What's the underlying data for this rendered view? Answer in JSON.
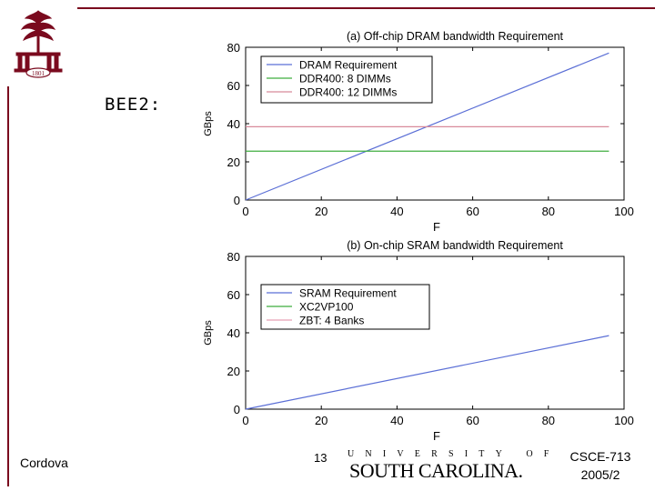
{
  "slide": {
    "title": "BEE2:",
    "footer_left": "Cordova",
    "page_number": "13",
    "footer_right_line1": "CSCE-713",
    "footer_right_line2": "2005/2",
    "university_line1": "UNIVERSITY OF",
    "university_line2": "SOUTH CAROLINA.",
    "logo_year": "1801"
  },
  "colors": {
    "accent": "#7a0a1e",
    "dram_requirement": "#5b6fd6",
    "ddr400_8dimms": "#3fae3f",
    "ddr400_12dimms": "#d88a9a",
    "sram_requirement": "#5b6fd6",
    "xc2vp100": "#3fae3f",
    "zbt_4banks": "#e8a0b4"
  },
  "chart_data": [
    {
      "type": "line",
      "title": "(a) Off-chip DRAM bandwidth Requirement",
      "xlabel": "F",
      "ylabel": "GBps",
      "xlim": [
        0,
        100
      ],
      "ylim": [
        0,
        80
      ],
      "xticks": [
        0,
        20,
        40,
        60,
        80,
        100
      ],
      "yticks": [
        0,
        20,
        40,
        60,
        80
      ],
      "legend_position": "top-left",
      "series": [
        {
          "name": "DRAM Requirement",
          "x": [
            0,
            96
          ],
          "y": [
            0,
            77
          ],
          "color_key": "dram_requirement"
        },
        {
          "name": "DDR400: 8 DIMMs",
          "x": [
            0,
            96
          ],
          "y": [
            25.6,
            25.6
          ],
          "color_key": "ddr400_8dimms"
        },
        {
          "name": "DDR400: 12 DIMMs",
          "x": [
            0,
            96
          ],
          "y": [
            38.4,
            38.4
          ],
          "color_key": "ddr400_12dimms"
        }
      ]
    },
    {
      "type": "line",
      "title": "(b) On-chip SRAM bandwidth Requirement",
      "xlabel": "F",
      "ylabel": "GBps",
      "xlim": [
        0,
        100
      ],
      "ylim": [
        0,
        80
      ],
      "xticks": [
        0,
        20,
        40,
        60,
        80,
        100
      ],
      "yticks": [
        0,
        20,
        40,
        60,
        80
      ],
      "legend_position": "top-left",
      "series": [
        {
          "name": "SRAM Requirement",
          "x": [
            0,
            96
          ],
          "y": [
            0,
            38.5
          ],
          "color_key": "sram_requirement"
        },
        {
          "name": "XC2VP100",
          "x": [],
          "y": [],
          "color_key": "xc2vp100"
        },
        {
          "name": "ZBT: 4 Banks",
          "x": [],
          "y": [],
          "color_key": "zbt_4banks"
        }
      ]
    }
  ]
}
